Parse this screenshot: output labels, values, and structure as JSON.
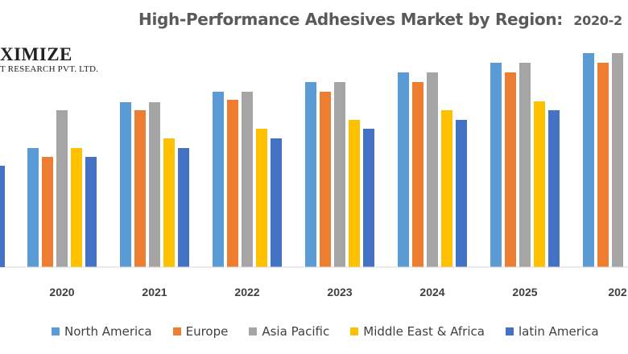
{
  "title_main": "High-Performance Adhesives Market by Region:",
  "title_suffix": "2020-2",
  "logo": {
    "brand": "XIMIZE",
    "sub": "T RESEARCH PVT. LTD."
  },
  "chart_data": {
    "type": "bar",
    "categories": [
      "2020",
      "2021",
      "2022",
      "2023",
      "2024",
      "2025",
      "202"
    ],
    "ylim": [
      0,
      280
    ],
    "grid": false,
    "legend_position": "bottom",
    "series": [
      {
        "name": "North America",
        "color": "#5B9BD5",
        "values": [
          148,
          205,
          218,
          230,
          242,
          254,
          266
        ]
      },
      {
        "name": "Europe",
        "color": "#ED7D31",
        "values": [
          137,
          195,
          208,
          218,
          230,
          242,
          254
        ]
      },
      {
        "name": "Asia Pacific",
        "color": "#A5A5A5",
        "values": [
          195,
          205,
          218,
          230,
          242,
          254,
          266
        ]
      },
      {
        "name": "Middle East & Africa",
        "color": "#FFC000",
        "values": [
          148,
          160,
          172,
          183,
          195,
          206,
          0
        ]
      },
      {
        "name": "latin America",
        "color": "#4472C4",
        "values": [
          137,
          148,
          160,
          172,
          183,
          195,
          0
        ]
      }
    ]
  }
}
